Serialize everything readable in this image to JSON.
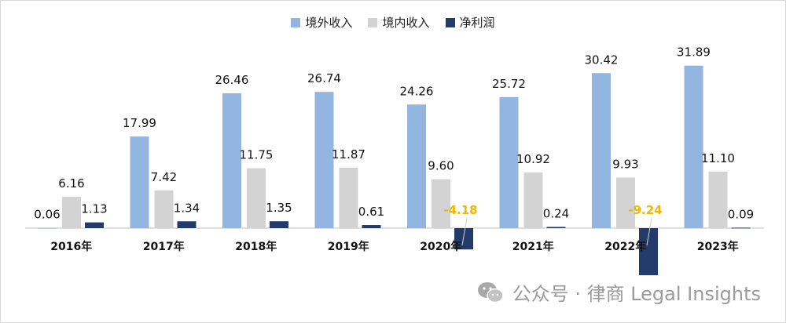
{
  "chart_data": {
    "type": "bar",
    "categories": [
      "2016年",
      "2017年",
      "2018年",
      "2019年",
      "2020年",
      "2021年",
      "2022年",
      "2023年"
    ],
    "series": [
      {
        "name": "境外收入",
        "color": "#93b6e0",
        "values": [
          0.06,
          17.99,
          26.46,
          26.74,
          24.26,
          25.72,
          30.42,
          31.89
        ]
      },
      {
        "name": "境内收入",
        "color": "#d3d3d3",
        "values": [
          6.16,
          7.42,
          11.75,
          11.87,
          9.6,
          10.92,
          9.93,
          11.1
        ]
      },
      {
        "name": "净利润",
        "color": "#233b6b",
        "values": [
          1.13,
          1.34,
          1.35,
          0.61,
          -4.18,
          0.24,
          -9.24,
          0.09
        ]
      }
    ],
    "value_labels": [
      [
        "0.06",
        "17.99",
        "26.46",
        "26.74",
        "24.26",
        "25.72",
        "30.42",
        "31.89"
      ],
      [
        "6.16",
        "7.42",
        "11.75",
        "11.87",
        "9.60",
        "10.92",
        "9.93",
        "11.10"
      ],
      [
        "1.13",
        "1.34",
        "1.35",
        "0.61",
        "-4.18",
        "0.24",
        "-9.24",
        "0.09"
      ]
    ],
    "negative_label_color": "#f2b600",
    "legend_position": "top-center",
    "grid": false
  },
  "watermark": {
    "text": "公众号 · 律商 Legal Insights",
    "icon": "wechat-icon"
  }
}
